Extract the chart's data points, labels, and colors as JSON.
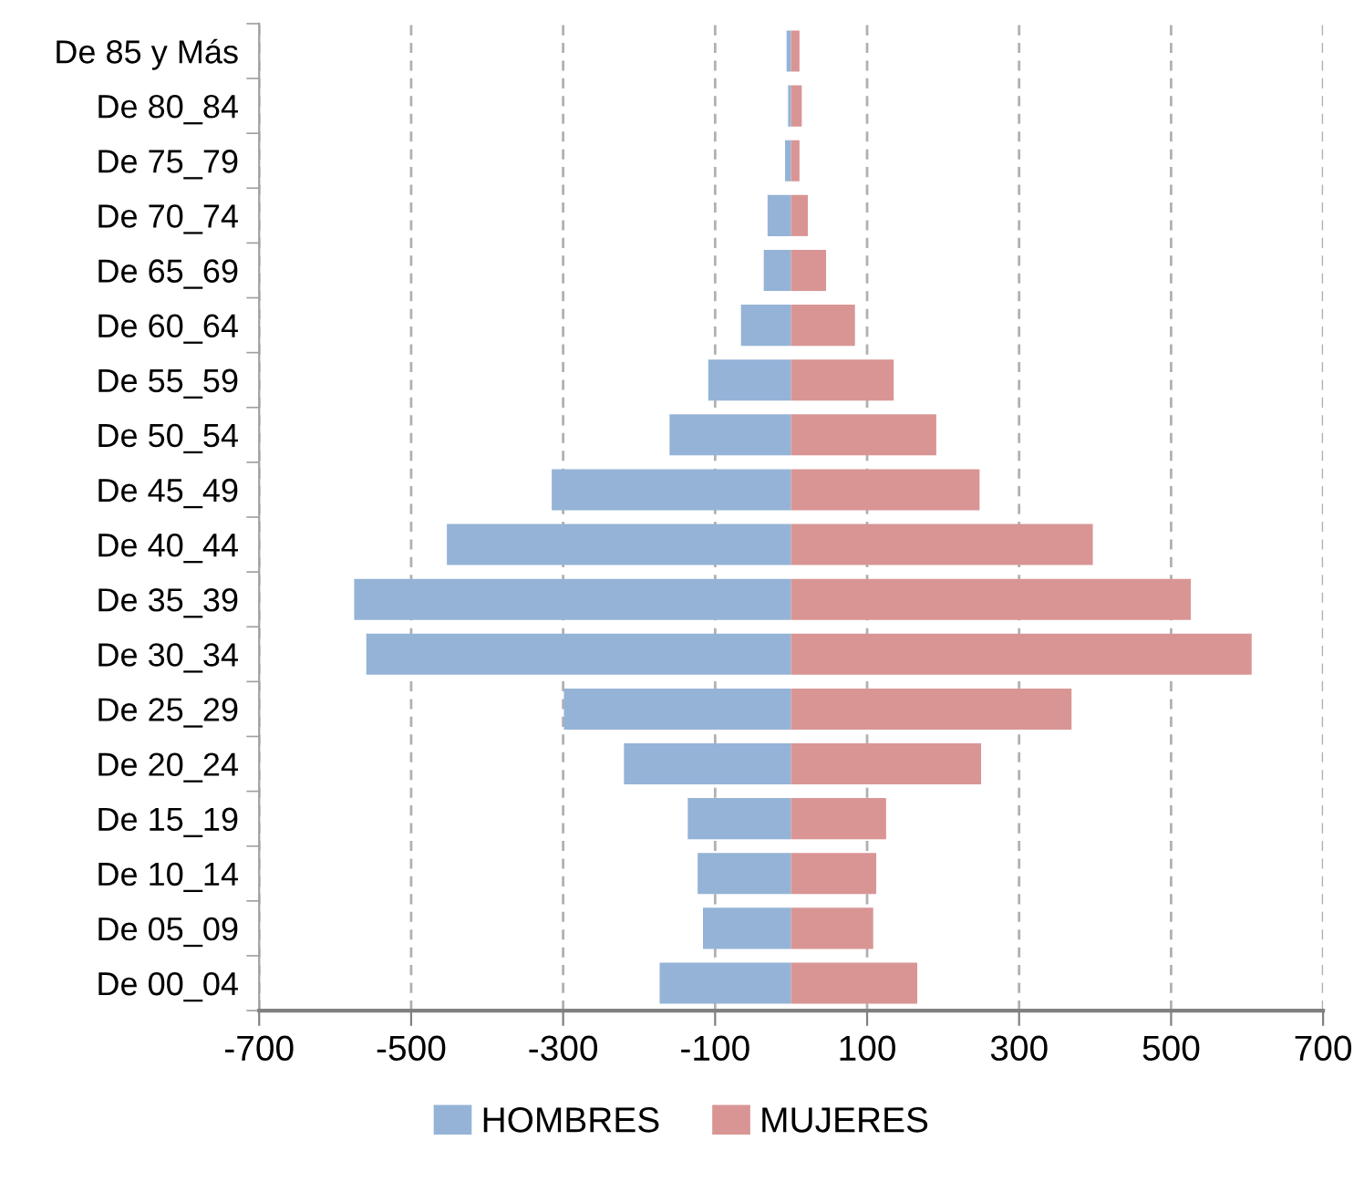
{
  "chart_data": {
    "type": "bar",
    "orientation": "horizontal",
    "categories": [
      "De 85 y Más",
      "De 80_84",
      "De 75_79",
      "De 70_74",
      "De 65_69",
      "De 60_64",
      "De 55_59",
      "De 50_54",
      "De 45_49",
      "De 40_44",
      "De 35_39",
      "De 30_34",
      "De 25_29",
      "De 20_24",
      "De 15_19",
      "De 10_14",
      "De 05_09",
      "De 00_04"
    ],
    "series": [
      {
        "name": "HOMBRES",
        "color": "#95b3d7",
        "values": [
          -6,
          -4,
          -8,
          -31,
          -36,
          -66,
          -109,
          -160,
          -315,
          -453,
          -575,
          -559,
          -299,
          -220,
          -136,
          -123,
          -116,
          -173
        ]
      },
      {
        "name": "MUJERES",
        "color": "#d99594",
        "values": [
          11,
          14,
          11,
          22,
          46,
          84,
          135,
          191,
          248,
          397,
          526,
          606,
          369,
          250,
          125,
          112,
          108,
          166
        ]
      }
    ],
    "xlim": [
      -700,
      700
    ],
    "xticks": [
      -700,
      -500,
      -300,
      -100,
      100,
      300,
      500,
      700
    ],
    "grid": "x",
    "legend": "bottom",
    "stacked": true
  }
}
